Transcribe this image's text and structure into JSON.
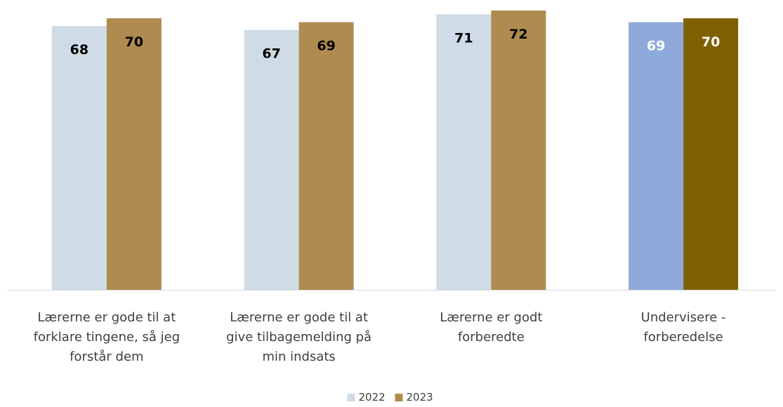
{
  "chart_data": {
    "type": "bar",
    "categories": [
      [
        "Lærerne er gode til at",
        "forklare tingene, så jeg",
        "forstår dem"
      ],
      [
        "Lærerne er gode til at",
        "give tilbagemelding på",
        "min indsats"
      ],
      [
        "Lærerne er godt",
        "forberedte"
      ],
      [
        "Undervisere -",
        "forberedelse"
      ]
    ],
    "series": [
      {
        "name": "2022",
        "values": [
          68,
          67,
          71,
          69
        ],
        "colors": [
          "#cfdbe6",
          "#cfdbe6",
          "#cfdbe6",
          "#8eaadb"
        ],
        "label_colors": [
          "#000000",
          "#000000",
          "#000000",
          "#ffffff"
        ]
      },
      {
        "name": "2023",
        "values": [
          70,
          69,
          72,
          70
        ],
        "colors": [
          "#b08b4f",
          "#b08b4f",
          "#b08b4f",
          "#7f6000"
        ],
        "label_colors": [
          "#000000",
          "#000000",
          "#000000",
          "#ffffff"
        ]
      }
    ],
    "legend": {
      "position": "bottom",
      "entries": [
        {
          "label": "2022",
          "color": "#cfdbe6"
        },
        {
          "label": "2023",
          "color": "#b08b4f"
        }
      ]
    },
    "ylim": [
      0,
      72
    ],
    "axis_color": "#d9d9d9",
    "grid": false
  }
}
